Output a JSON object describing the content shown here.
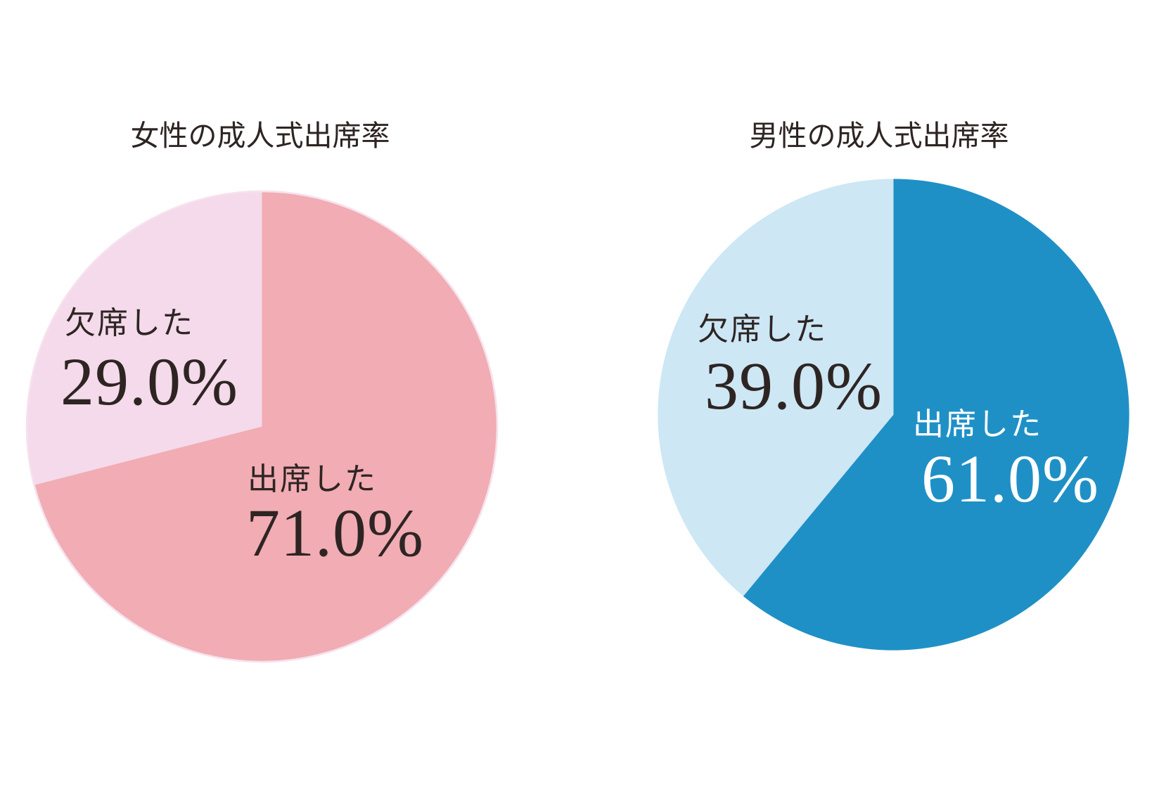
{
  "page": {
    "background": "#ffffff",
    "text_color": "#2e2523"
  },
  "chart_data": [
    {
      "type": "pie",
      "title": "女性の成人式出席率",
      "start_angle": "12-oclock",
      "direction": "clockwise",
      "categories": [
        "出席した",
        "欠席した"
      ],
      "values": [
        71.0,
        29.0
      ],
      "rim_color": "#f6e2ee",
      "slices": [
        {
          "label": "出席した",
          "value": 71.0,
          "percent_text": "71.0%",
          "color": "#f1acb4",
          "label_color": "#2e2523"
        },
        {
          "label": "欠席した",
          "value": 29.0,
          "percent_text": "29.0%",
          "color": "#f4daea",
          "label_color": "#2e2523"
        }
      ]
    },
    {
      "type": "pie",
      "title": "男性の成人式出席率",
      "start_angle": "12-oclock",
      "direction": "clockwise",
      "categories": [
        "出席した",
        "欠席した"
      ],
      "values": [
        61.0,
        39.0
      ],
      "slices": [
        {
          "label": "出席した",
          "value": 61.0,
          "percent_text": "61.0%",
          "color": "#1f90c6",
          "label_color": "#ffffff"
        },
        {
          "label": "欠席した",
          "value": 39.0,
          "percent_text": "39.0%",
          "color": "#cde7f5",
          "label_color": "#2e2523"
        }
      ]
    }
  ]
}
